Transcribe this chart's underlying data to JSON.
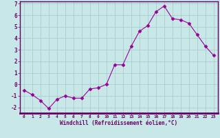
{
  "x": [
    0,
    1,
    2,
    3,
    4,
    5,
    6,
    7,
    8,
    9,
    10,
    11,
    12,
    13,
    14,
    15,
    16,
    17,
    18,
    19,
    20,
    21,
    22,
    23
  ],
  "y": [
    -0.5,
    -0.9,
    -1.4,
    -2.1,
    -1.3,
    -1.0,
    -1.2,
    -1.2,
    -0.4,
    -0.3,
    0.0,
    1.7,
    1.7,
    3.3,
    4.6,
    5.1,
    6.3,
    6.8,
    5.7,
    5.6,
    5.3,
    4.3,
    3.3,
    2.5
  ],
  "line_color": "#990099",
  "marker": "D",
  "marker_size": 2.5,
  "bg_color": "#c8e8e8",
  "grid_color": "#aacccc",
  "axis_bar_color": "#660066",
  "xlabel": "Windchill (Refroidissement éolien,°C)",
  "xlabel_color": "#660066",
  "tick_color": "#660066",
  "ylim": [
    -2.5,
    7.2
  ],
  "xlim": [
    -0.5,
    23.5
  ],
  "yticks": [
    -2,
    -1,
    0,
    1,
    2,
    3,
    4,
    5,
    6,
    7
  ],
  "xticks": [
    0,
    1,
    2,
    3,
    4,
    5,
    6,
    7,
    8,
    9,
    10,
    11,
    12,
    13,
    14,
    15,
    16,
    17,
    18,
    19,
    20,
    21,
    22,
    23
  ],
  "fig_width": 3.2,
  "fig_height": 2.0,
  "dpi": 100
}
